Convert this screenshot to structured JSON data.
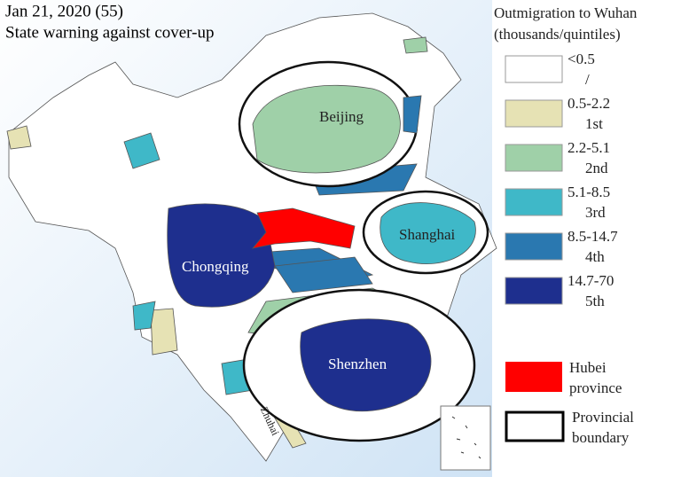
{
  "title": "Jan 21, 2020 (55)",
  "subtitle": "State warning against cover-up",
  "legend": {
    "title_lines": [
      "Outmigration to Wuhan",
      "(thousands/quintiles)"
    ],
    "items": [
      {
        "range": "<0.5",
        "quintile": "/",
        "color": "#ffffff"
      },
      {
        "range": "0.5-2.2",
        "quintile": "1st",
        "color": "#e6e2b4"
      },
      {
        "range": "2.2-5.1",
        "quintile": "2nd",
        "color": "#9fd0a8"
      },
      {
        "range": "5.1-8.5",
        "quintile": "3rd",
        "color": "#3fb8c8"
      },
      {
        "range": "8.5-14.7",
        "quintile": "4th",
        "color": "#2a78b0"
      },
      {
        "range": "14.7-70",
        "quintile": "5th",
        "color": "#1e2f8e"
      }
    ],
    "hubei": {
      "label_lines": [
        "Hubei",
        "province"
      ],
      "color": "#ff0000"
    },
    "boundary": {
      "label_lines": [
        "Provincial",
        "boundary"
      ]
    }
  },
  "map_labels": [
    "Beijing",
    "Shanghai",
    "Chongqing",
    "Shenzhen",
    "Zhuhai"
  ]
}
